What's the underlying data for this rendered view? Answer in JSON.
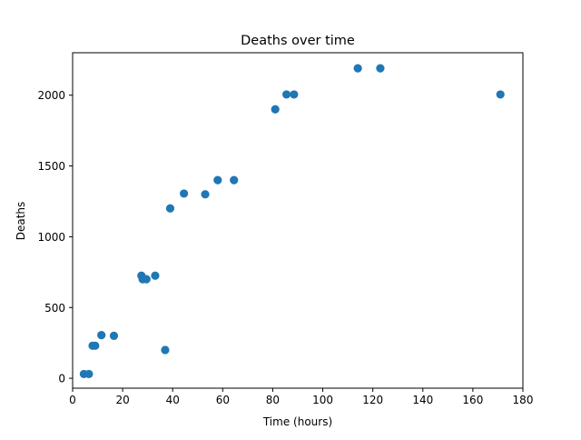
{
  "chart_data": {
    "type": "scatter",
    "title": "Deaths over time",
    "xlabel": "Time (hours)",
    "ylabel": "Deaths",
    "xlim": [
      0,
      180
    ],
    "ylim": [
      -70,
      2300
    ],
    "xticks": [
      0,
      20,
      40,
      60,
      80,
      100,
      120,
      140,
      160,
      180
    ],
    "yticks": [
      0,
      500,
      1000,
      1500,
      2000
    ],
    "grid": false,
    "marker_color": "#1f77b4",
    "series": [
      {
        "points": [
          {
            "x": 4.5,
            "y": 30
          },
          {
            "x": 6.5,
            "y": 30
          },
          {
            "x": 8.0,
            "y": 230
          },
          {
            "x": 9.0,
            "y": 230
          },
          {
            "x": 11.5,
            "y": 305
          },
          {
            "x": 16.5,
            "y": 300
          },
          {
            "x": 27.5,
            "y": 725
          },
          {
            "x": 28.0,
            "y": 700
          },
          {
            "x": 29.5,
            "y": 700
          },
          {
            "x": 33.0,
            "y": 725
          },
          {
            "x": 37.0,
            "y": 200
          },
          {
            "x": 39.0,
            "y": 1200
          },
          {
            "x": 44.5,
            "y": 1305
          },
          {
            "x": 53.0,
            "y": 1300
          },
          {
            "x": 58.0,
            "y": 1400
          },
          {
            "x": 64.5,
            "y": 1400
          },
          {
            "x": 81.0,
            "y": 1900
          },
          {
            "x": 85.5,
            "y": 2005
          },
          {
            "x": 88.5,
            "y": 2005
          },
          {
            "x": 114.0,
            "y": 2190
          },
          {
            "x": 123.0,
            "y": 2190
          },
          {
            "x": 171.0,
            "y": 2005
          }
        ]
      }
    ]
  }
}
